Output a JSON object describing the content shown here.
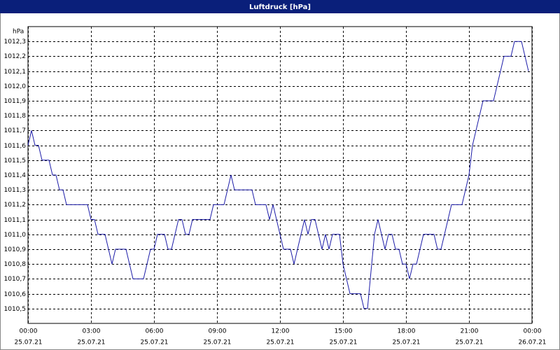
{
  "chart_data": {
    "type": "line",
    "title": "Luftdruck [hPa]",
    "y_unit": "hPa",
    "x": [
      0,
      10,
      20,
      30,
      40,
      60,
      70,
      80,
      90,
      100,
      110,
      170,
      180,
      190,
      200,
      220,
      240,
      250,
      280,
      300,
      330,
      350,
      360,
      370,
      390,
      400,
      410,
      430,
      440,
      450,
      460,
      470,
      520,
      530,
      560,
      580,
      590,
      640,
      650,
      680,
      690,
      700,
      720,
      730,
      750,
      760,
      790,
      800,
      810,
      820,
      840,
      850,
      860,
      870,
      890,
      900,
      920,
      950,
      960,
      970,
      990,
      1000,
      1020,
      1030,
      1040,
      1050,
      1060,
      1070,
      1080,
      1090,
      1100,
      1110,
      1130,
      1160,
      1170,
      1180,
      1210,
      1240,
      1260,
      1270,
      1300,
      1330,
      1350,
      1360,
      1380,
      1390,
      1410,
      1430
    ],
    "values": [
      1011.6,
      1011.7,
      1011.6,
      1011.6,
      1011.5,
      1011.5,
      1011.4,
      1011.4,
      1011.3,
      1011.3,
      1011.2,
      1011.2,
      1011.1,
      1011.1,
      1011.0,
      1011.0,
      1010.8,
      1010.9,
      1010.9,
      1010.7,
      1010.7,
      1010.9,
      1010.9,
      1011.0,
      1011.0,
      1010.9,
      1010.9,
      1011.1,
      1011.1,
      1011.0,
      1011.0,
      1011.1,
      1011.1,
      1011.2,
      1011.2,
      1011.4,
      1011.3,
      1011.3,
      1011.2,
      1011.2,
      1011.1,
      1011.2,
      1011.0,
      1010.9,
      1010.9,
      1010.8,
      1011.1,
      1011.0,
      1011.1,
      1011.1,
      1010.9,
      1011.0,
      1010.9,
      1011.0,
      1011.0,
      1010.8,
      1010.6,
      1010.6,
      1010.5,
      1010.5,
      1011.0,
      1011.1,
      1010.9,
      1011.0,
      1011.0,
      1010.9,
      1010.9,
      1010.8,
      1010.8,
      1010.7,
      1010.8,
      1010.8,
      1011.0,
      1011.0,
      1010.9,
      1010.9,
      1011.2,
      1011.2,
      1011.4,
      1011.6,
      1011.9,
      1011.9,
      1012.1,
      1012.2,
      1012.2,
      1012.3,
      1012.3,
      1012.1
    ],
    "color": "#1c1ca8",
    "xlim": [
      0,
      1440
    ],
    "xticks": [
      {
        "value": 0,
        "label": "00:00",
        "date": "25.07.21"
      },
      {
        "value": 180,
        "label": "03:00",
        "date": "25.07.21"
      },
      {
        "value": 360,
        "label": "06:00",
        "date": "25.07.21"
      },
      {
        "value": 540,
        "label": "09:00",
        "date": "25.07.21"
      },
      {
        "value": 720,
        "label": "12:00",
        "date": "25.07.21"
      },
      {
        "value": 900,
        "label": "15:00",
        "date": "25.07.21"
      },
      {
        "value": 1080,
        "label": "18:00",
        "date": "25.07.21"
      },
      {
        "value": 1260,
        "label": "21:00",
        "date": "25.07.21"
      },
      {
        "value": 1440,
        "label": "00:00",
        "date": "26.07.21"
      }
    ],
    "ylim": [
      1010.4,
      1012.4
    ],
    "yticks": [
      {
        "value": 1010.5,
        "label": "1010,5"
      },
      {
        "value": 1010.6,
        "label": "1010,6"
      },
      {
        "value": 1010.7,
        "label": "1010,7"
      },
      {
        "value": 1010.8,
        "label": "1010,8"
      },
      {
        "value": 1010.9,
        "label": "1010,9"
      },
      {
        "value": 1011.0,
        "label": "1011,0"
      },
      {
        "value": 1011.1,
        "label": "1011,1"
      },
      {
        "value": 1011.2,
        "label": "1011,2"
      },
      {
        "value": 1011.3,
        "label": "1011,3"
      },
      {
        "value": 1011.4,
        "label": "1011,4"
      },
      {
        "value": 1011.5,
        "label": "1011,5"
      },
      {
        "value": 1011.6,
        "label": "1011,6"
      },
      {
        "value": 1011.7,
        "label": "1011,7"
      },
      {
        "value": 1011.8,
        "label": "1011,8"
      },
      {
        "value": 1011.9,
        "label": "1011,9"
      },
      {
        "value": 1012.0,
        "label": "1012,0"
      },
      {
        "value": 1012.1,
        "label": "1012,1"
      },
      {
        "value": 1012.2,
        "label": "1012,2"
      },
      {
        "value": 1012.3,
        "label": "1012,3"
      }
    ],
    "grid": true
  }
}
